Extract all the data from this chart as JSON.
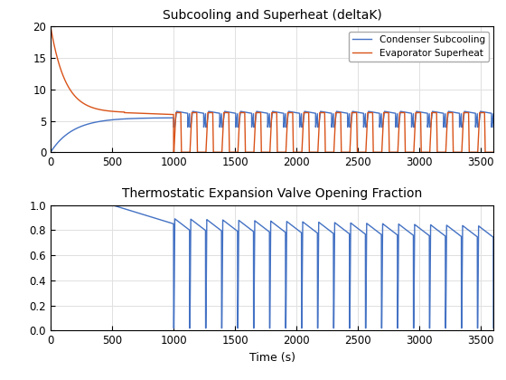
{
  "title1": "Subcooling and Superheat (deltaK)",
  "title2": "Thermostatic Expansion Valve Opening Fraction",
  "xlabel": "Time (s)",
  "legend1": [
    "Condenser Subcooling",
    "Evaporator Superheat"
  ],
  "color_blue": "#4472c4",
  "color_orange": "#d95319",
  "xlim": [
    0,
    3600
  ],
  "ylim1": [
    0,
    20
  ],
  "ylim2": [
    0,
    1
  ],
  "xticks": [
    0,
    500,
    1000,
    1500,
    2000,
    2500,
    3000,
    3500
  ],
  "yticks1": [
    0,
    5,
    10,
    15,
    20
  ],
  "yticks2": [
    0,
    0.2,
    0.4,
    0.6,
    0.8,
    1.0
  ],
  "figsize": [
    5.6,
    4.2
  ],
  "dpi": 100
}
